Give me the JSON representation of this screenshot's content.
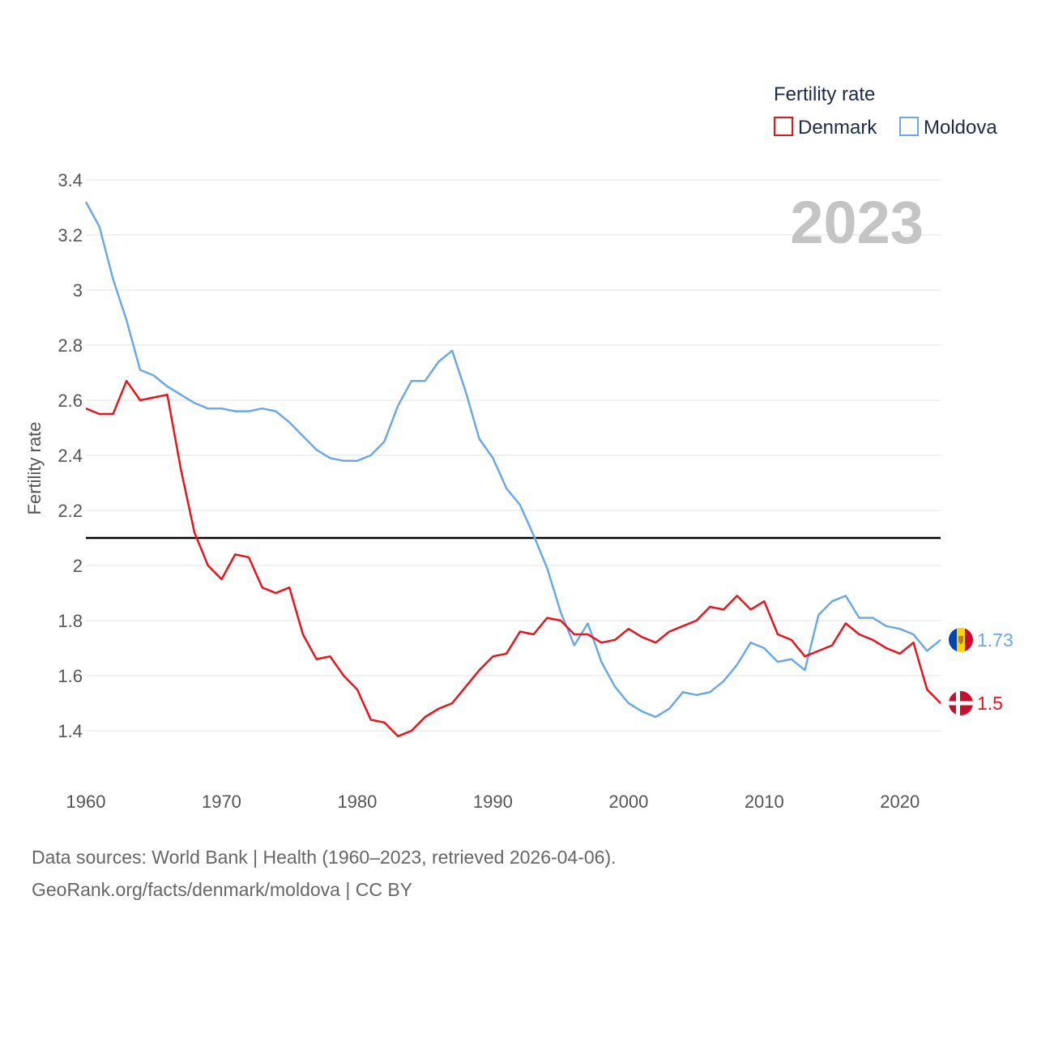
{
  "chart_data": {
    "type": "line",
    "title_year": "2023",
    "legend_title": "Fertility rate",
    "ylabel": "Fertility rate",
    "xlim": [
      1960,
      2023
    ],
    "ylim": [
      1.3,
      3.4
    ],
    "x_ticks": [
      1960,
      1970,
      1980,
      1990,
      2000,
      2010,
      2020
    ],
    "y_ticks": [
      1.4,
      1.6,
      1.8,
      2,
      2.2,
      2.4,
      2.6,
      2.8,
      3,
      3.2,
      3.4
    ],
    "y_tick_labels": [
      "1.4",
      "1.6",
      "1.8",
      "2",
      "2.2",
      "2.4",
      "2.6",
      "2.8",
      "3",
      "3.2",
      "3.4"
    ],
    "reference_line": 2.1,
    "x": [
      1960,
      1961,
      1962,
      1963,
      1964,
      1965,
      1966,
      1967,
      1968,
      1969,
      1970,
      1971,
      1972,
      1973,
      1974,
      1975,
      1976,
      1977,
      1978,
      1979,
      1980,
      1981,
      1982,
      1983,
      1984,
      1985,
      1986,
      1987,
      1988,
      1989,
      1990,
      1991,
      1992,
      1993,
      1994,
      1995,
      1996,
      1997,
      1998,
      1999,
      2000,
      2001,
      2002,
      2003,
      2004,
      2005,
      2006,
      2007,
      2008,
      2009,
      2010,
      2011,
      2012,
      2013,
      2014,
      2015,
      2016,
      2017,
      2018,
      2019,
      2020,
      2021,
      2022,
      2023
    ],
    "series": [
      {
        "name": "Denmark",
        "color": "#e8141c",
        "end_label": "1.5",
        "values": [
          2.57,
          2.55,
          2.55,
          2.67,
          2.6,
          2.61,
          2.62,
          2.35,
          2.12,
          2.0,
          1.95,
          2.04,
          2.03,
          1.92,
          1.9,
          1.92,
          1.75,
          1.66,
          1.67,
          1.6,
          1.55,
          1.44,
          1.43,
          1.38,
          1.4,
          1.45,
          1.48,
          1.5,
          1.56,
          1.62,
          1.67,
          1.68,
          1.76,
          1.75,
          1.81,
          1.8,
          1.75,
          1.75,
          1.72,
          1.73,
          1.77,
          1.74,
          1.72,
          1.76,
          1.78,
          1.8,
          1.85,
          1.84,
          1.89,
          1.84,
          1.87,
          1.75,
          1.73,
          1.67,
          1.69,
          1.71,
          1.79,
          1.75,
          1.73,
          1.7,
          1.68,
          1.72,
          1.55,
          1.5
        ]
      },
      {
        "name": "Moldova",
        "color": "#6aa9e6",
        "end_label": "1.73",
        "values": [
          3.32,
          3.23,
          3.04,
          2.89,
          2.71,
          2.69,
          2.65,
          2.62,
          2.59,
          2.57,
          2.57,
          2.56,
          2.56,
          2.57,
          2.56,
          2.52,
          2.47,
          2.42,
          2.39,
          2.38,
          2.38,
          2.4,
          2.45,
          2.58,
          2.67,
          2.67,
          2.74,
          2.78,
          2.63,
          2.46,
          2.39,
          2.28,
          2.22,
          2.11,
          1.99,
          1.83,
          1.71,
          1.79,
          1.65,
          1.56,
          1.5,
          1.47,
          1.45,
          1.48,
          1.54,
          1.53,
          1.54,
          1.58,
          1.64,
          1.72,
          1.7,
          1.65,
          1.66,
          1.62,
          1.82,
          1.87,
          1.89,
          1.81,
          1.81,
          1.78,
          1.77,
          1.75,
          1.69,
          1.73
        ]
      }
    ]
  },
  "footer": {
    "line1": "Data sources: World Bank | Health (1960–2023, retrieved 2026-04-06).",
    "line2": "GeoRank.org/facts/denmark/moldova | CC BY"
  }
}
